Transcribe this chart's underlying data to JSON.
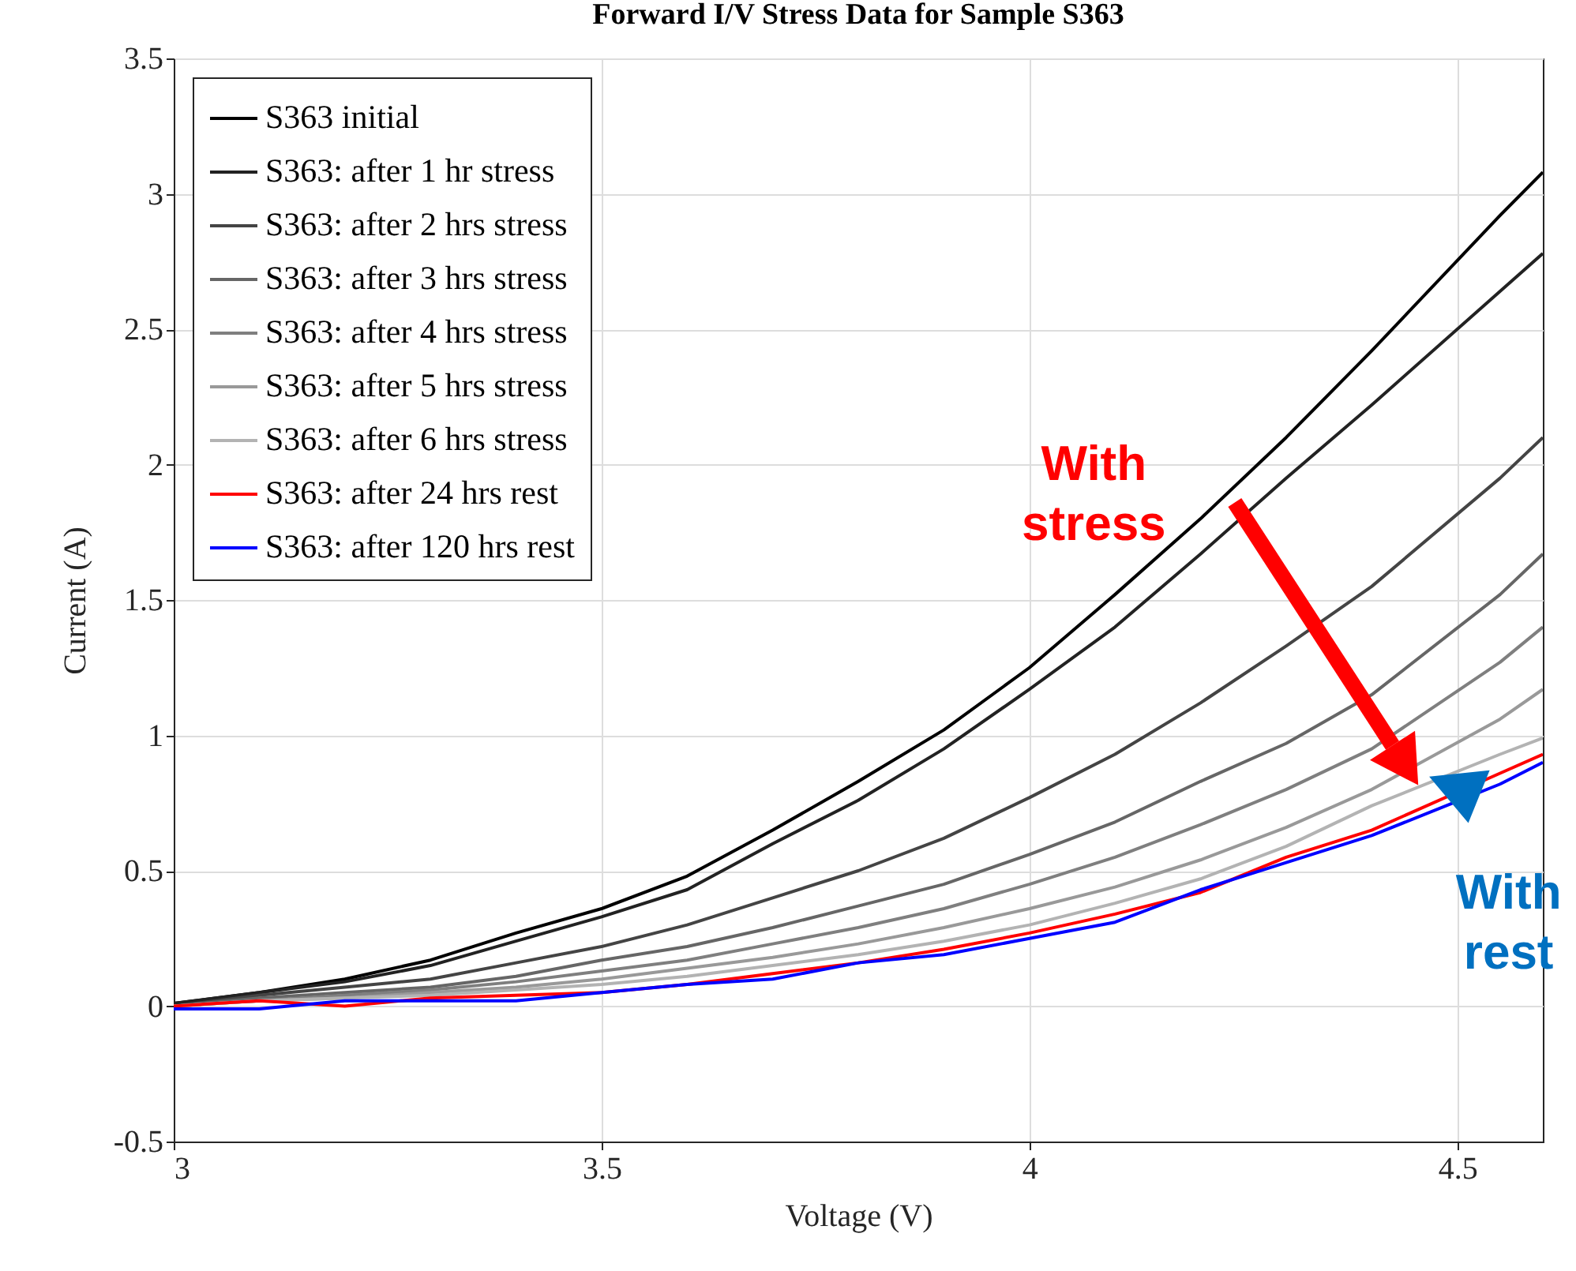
{
  "chart_data": {
    "type": "line",
    "title": "Forward I/V Stress Data for Sample S363",
    "xlabel": "Voltage (V)",
    "ylabel": "Current (A)",
    "x": [
      3.0,
      3.1,
      3.2,
      3.3,
      3.4,
      3.5,
      3.6,
      3.7,
      3.8,
      3.9,
      4.0,
      4.1,
      4.2,
      4.3,
      4.4,
      4.55,
      4.6
    ],
    "series": [
      {
        "name": "S363 initial",
        "color": "#000000",
        "values": [
          0.01,
          0.05,
          0.1,
          0.17,
          0.27,
          0.36,
          0.48,
          0.65,
          0.83,
          1.02,
          1.25,
          1.52,
          1.8,
          2.1,
          2.42,
          2.92,
          3.08
        ]
      },
      {
        "name": "S363: after 1 hr stress",
        "color": "#222222",
        "values": [
          0.01,
          0.05,
          0.09,
          0.15,
          0.24,
          0.33,
          0.43,
          0.6,
          0.76,
          0.95,
          1.17,
          1.4,
          1.67,
          1.95,
          2.22,
          2.64,
          2.78
        ]
      },
      {
        "name": "S363: after 2 hrs stress",
        "color": "#444444",
        "values": [
          0.0,
          0.04,
          0.07,
          0.1,
          0.16,
          0.22,
          0.3,
          0.4,
          0.5,
          0.62,
          0.77,
          0.93,
          1.12,
          1.33,
          1.55,
          1.95,
          2.1
        ]
      },
      {
        "name": "S363: after 3 hrs stress",
        "color": "#666666",
        "values": [
          0.0,
          0.03,
          0.05,
          0.07,
          0.11,
          0.17,
          0.22,
          0.29,
          0.37,
          0.45,
          0.56,
          0.68,
          0.83,
          0.97,
          1.15,
          1.52,
          1.67
        ]
      },
      {
        "name": "S363: after 4 hrs stress",
        "color": "#7f7f7f",
        "values": [
          0.0,
          0.02,
          0.04,
          0.06,
          0.09,
          0.13,
          0.17,
          0.23,
          0.29,
          0.36,
          0.45,
          0.55,
          0.67,
          0.8,
          0.95,
          1.27,
          1.4
        ]
      },
      {
        "name": "S363: after 5 hrs stress",
        "color": "#999999",
        "values": [
          0.0,
          0.02,
          0.03,
          0.05,
          0.07,
          0.1,
          0.14,
          0.18,
          0.23,
          0.29,
          0.36,
          0.44,
          0.54,
          0.66,
          0.8,
          1.06,
          1.17
        ]
      },
      {
        "name": "S363: after 6 hrs stress",
        "color": "#b3b3b3",
        "values": [
          0.0,
          0.02,
          0.03,
          0.04,
          0.06,
          0.08,
          0.11,
          0.15,
          0.19,
          0.24,
          0.3,
          0.38,
          0.47,
          0.59,
          0.74,
          0.93,
          0.99
        ]
      },
      {
        "name": "S363: after 24 hrs rest",
        "color": "#ff0000",
        "values": [
          0.0,
          0.02,
          0.0,
          0.03,
          0.04,
          0.05,
          0.08,
          0.12,
          0.16,
          0.21,
          0.27,
          0.34,
          0.42,
          0.55,
          0.65,
          0.86,
          0.93
        ]
      },
      {
        "name": "S363: after 120 hrs rest",
        "color": "#0000ff",
        "values": [
          -0.01,
          -0.01,
          0.02,
          0.02,
          0.02,
          0.05,
          0.08,
          0.1,
          0.16,
          0.19,
          0.25,
          0.31,
          0.43,
          0.53,
          0.63,
          0.82,
          0.9
        ]
      }
    ],
    "xlim": [
      3,
      4.6
    ],
    "xticks": [
      3,
      3.5,
      4,
      4.5
    ],
    "ylim": [
      -0.5,
      3.5
    ],
    "yticks": [
      -0.5,
      0,
      0.5,
      1,
      1.5,
      2,
      2.5,
      3,
      3.5
    ],
    "grid": true,
    "legend": "top left",
    "annotations": [
      "With stress",
      "With rest"
    ]
  }
}
